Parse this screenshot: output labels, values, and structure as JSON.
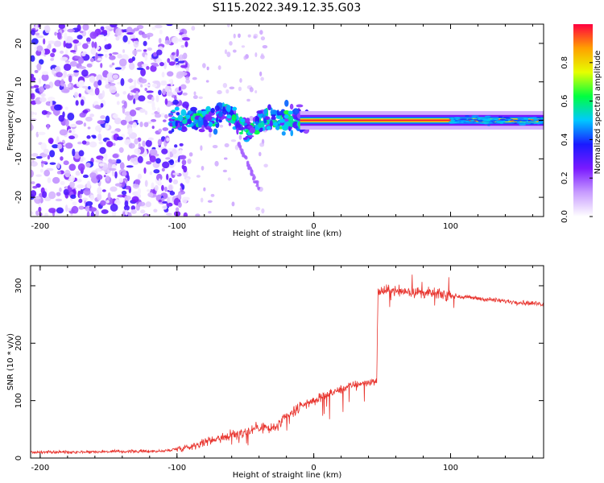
{
  "figure": {
    "title": "S115.2022.349.12.35.G03"
  },
  "chart_data": [
    {
      "type": "heatmap",
      "xlabel": "Height of straight line (km)",
      "ylabel": "Frequency (Hz)",
      "xlim": [
        -207,
        168
      ],
      "ylim": [
        -25,
        25
      ],
      "xticks": [
        -200,
        -100,
        0,
        100
      ],
      "yticks": [
        -20,
        -10,
        0,
        10,
        20
      ],
      "description_values": {
        "noise_region_x": [
          -207,
          -100
        ],
        "signal_region_x": [
          -100,
          168
        ],
        "signal_frequency_hz": 0
      },
      "colorbar": {
        "label": "Normalized spectral amplitude",
        "ticks": [
          0.0,
          0.2,
          0.4,
          0.6,
          0.8
        ],
        "range": [
          0,
          1
        ],
        "colors": [
          "#ffffff",
          "#c89cff",
          "#7a1aff",
          "#1a1aff",
          "#00c8ff",
          "#00ff40",
          "#e6ff00",
          "#ffa000",
          "#ff0040"
        ]
      }
    },
    {
      "type": "line",
      "xlabel": "Height of straight line (km)",
      "ylabel": "SNR (10 * v/v)",
      "xlim": [
        -207,
        168
      ],
      "ylim": [
        0,
        335
      ],
      "xticks": [
        -200,
        -100,
        0,
        100
      ],
      "yticks": [
        0,
        100,
        200,
        300
      ],
      "color": "#e8342e",
      "trend": [
        [
          -207,
          10
        ],
        [
          -110,
          12
        ],
        [
          -90,
          20
        ],
        [
          -70,
          35
        ],
        [
          -50,
          45
        ],
        [
          -40,
          55
        ],
        [
          -30,
          50
        ],
        [
          -20,
          70
        ],
        [
          -10,
          90
        ],
        [
          0,
          100
        ],
        [
          10,
          110
        ],
        [
          20,
          120
        ],
        [
          30,
          128
        ],
        [
          40,
          132
        ],
        [
          46,
          134
        ],
        [
          47,
          290
        ],
        [
          60,
          292
        ],
        [
          80,
          288
        ],
        [
          100,
          283
        ],
        [
          120,
          278
        ],
        [
          140,
          273
        ],
        [
          168,
          268
        ]
      ]
    }
  ]
}
